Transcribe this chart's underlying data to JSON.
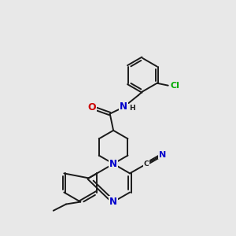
{
  "bg_color": "#e8e8e8",
  "bond_color": "#1a1a1a",
  "atom_colors": {
    "N": "#0000cc",
    "O": "#cc0000",
    "Cl": "#00aa00",
    "C": "#1a1a1a",
    "H": "#404040"
  },
  "font_size": 7.5,
  "lw": 1.4
}
